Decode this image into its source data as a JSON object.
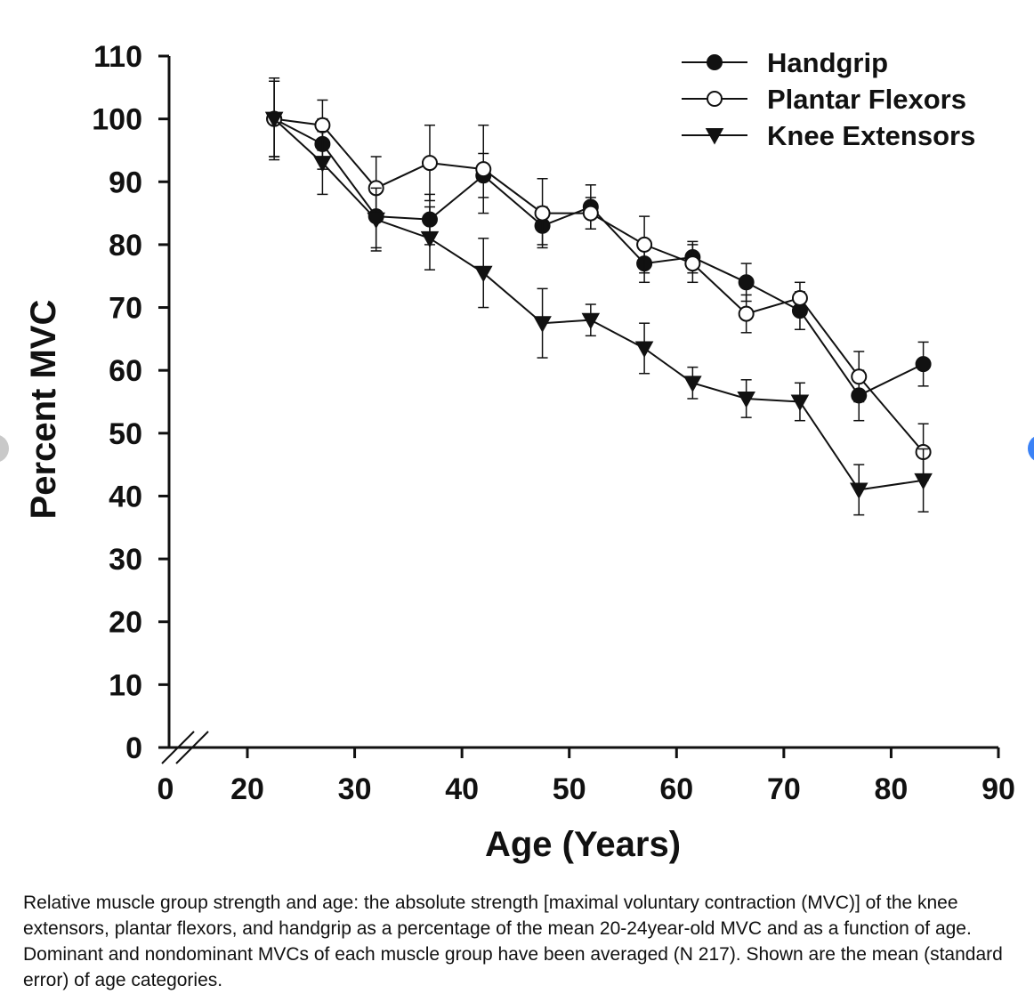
{
  "chart_data": {
    "type": "line",
    "xlabel": "Age (Years)",
    "ylabel": "Percent MVC",
    "xlim": [
      0,
      90
    ],
    "ylim": [
      0,
      110
    ],
    "x_ticks": [
      "0",
      "20",
      "30",
      "40",
      "50",
      "60",
      "70",
      "80",
      "90"
    ],
    "y_ticks": [
      "0",
      "10",
      "20",
      "30",
      "40",
      "50",
      "60",
      "70",
      "80",
      "90",
      "100",
      "110"
    ],
    "axis_break": true,
    "legend_position": "top-right",
    "series": [
      {
        "name": "Handgrip",
        "marker": "filled-circle",
        "x": [
          22.5,
          27,
          32,
          37,
          42,
          47.5,
          52,
          57,
          61.5,
          66.5,
          71.5,
          77,
          83
        ],
        "y": [
          100,
          96,
          84.5,
          84,
          91,
          83,
          86,
          77,
          78,
          74,
          69.5,
          56,
          61
        ],
        "err": [
          6,
          4,
          5,
          4,
          3.5,
          3,
          3.5,
          3,
          2.5,
          3,
          3,
          4,
          3.5
        ]
      },
      {
        "name": "Plantar Flexors",
        "marker": "open-circle",
        "x": [
          22.5,
          27,
          32,
          37,
          42,
          47.5,
          52,
          57,
          61.5,
          66.5,
          71.5,
          77,
          83
        ],
        "y": [
          100,
          99,
          89,
          93,
          92,
          85,
          85,
          80,
          77,
          69,
          71.5,
          59,
          47
        ],
        "err": [
          6,
          4,
          5,
          6,
          7,
          5.5,
          2.5,
          4.5,
          3,
          3,
          2.5,
          4,
          4.5
        ]
      },
      {
        "name": "Knee Extensors",
        "marker": "filled-triangle-down",
        "x": [
          22.5,
          27,
          32,
          37,
          42,
          47.5,
          52,
          57,
          61.5,
          66.5,
          71.5,
          77,
          83
        ],
        "y": [
          100,
          93,
          84,
          81,
          75.5,
          67.5,
          68,
          63.5,
          58,
          55.5,
          55,
          41,
          42.5
        ],
        "err": [
          6.5,
          5,
          5,
          5,
          5.5,
          5.5,
          2.5,
          4,
          2.5,
          3,
          3,
          4,
          5
        ]
      }
    ]
  },
  "colors": {
    "line": "#111111",
    "open_marker_fill": "#ffffff"
  },
  "caption": "Relative muscle group strength and age: the absolute strength [maximal voluntary contraction (MVC)] of the knee extensors, plantar flexors, and handgrip as a percentage of the mean 20-24year-old MVC and as a function of age. Dominant and nondominant MVCs of each muscle group have been averaged (N 217). Shown are the mean (standard error) of age categories."
}
